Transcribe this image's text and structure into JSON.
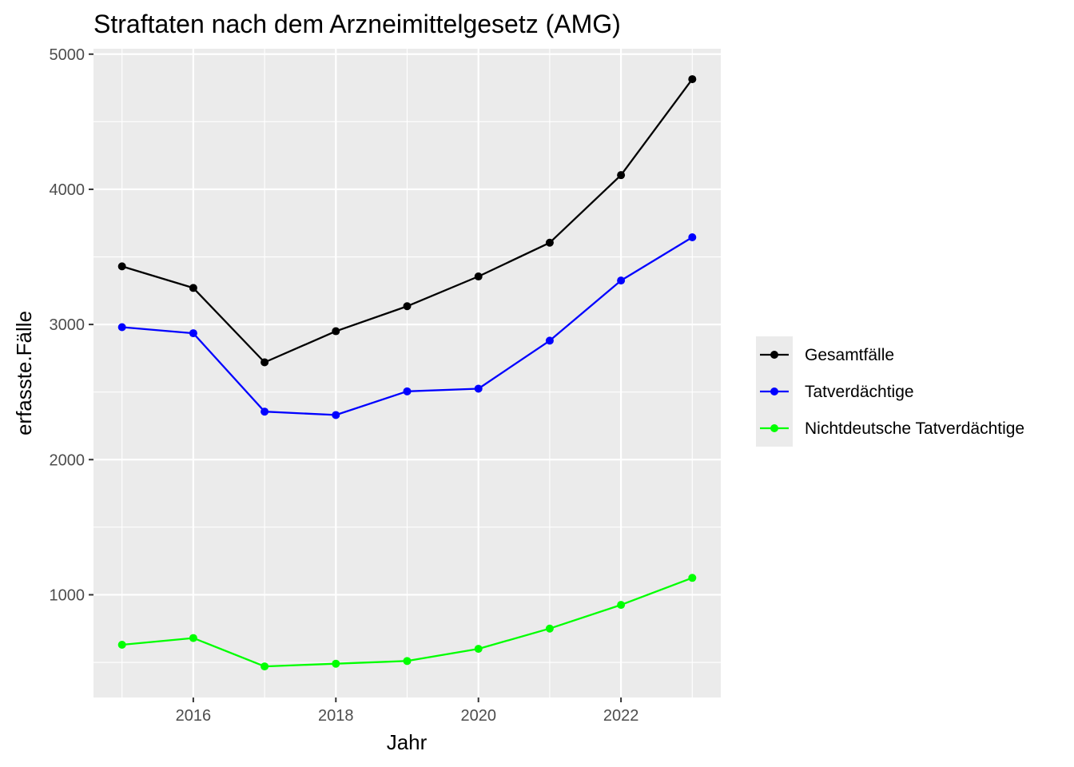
{
  "chart_data": {
    "type": "line",
    "title": "Straftaten nach dem Arzneimittelgesetz (AMG)",
    "xlabel": "Jahr",
    "ylabel": "erfasste.Fälle",
    "x": [
      2015,
      2016,
      2017,
      2018,
      2019,
      2020,
      2021,
      2022,
      2023
    ],
    "xlim": [
      2014.6,
      2023.4
    ],
    "ylim": [
      240,
      5040
    ],
    "x_ticks": [
      2016,
      2018,
      2020,
      2022
    ],
    "y_ticks": [
      1000,
      2000,
      3000,
      4000,
      5000
    ],
    "grid": true,
    "legend_position": "right",
    "series": [
      {
        "name": "Gesamtfälle",
        "color": "#000000",
        "values": [
          3430,
          3270,
          2720,
          2950,
          3135,
          3355,
          3605,
          4105,
          4815
        ]
      },
      {
        "name": "Tatverdächtige",
        "color": "#0000ff",
        "values": [
          2980,
          2935,
          2355,
          2330,
          2505,
          2525,
          2880,
          3325,
          3645
        ]
      },
      {
        "name": "Nichtdeutsche Tatverdächtige",
        "color": "#00ff00",
        "values": [
          630,
          680,
          470,
          490,
          510,
          600,
          750,
          925,
          1125
        ]
      }
    ]
  }
}
